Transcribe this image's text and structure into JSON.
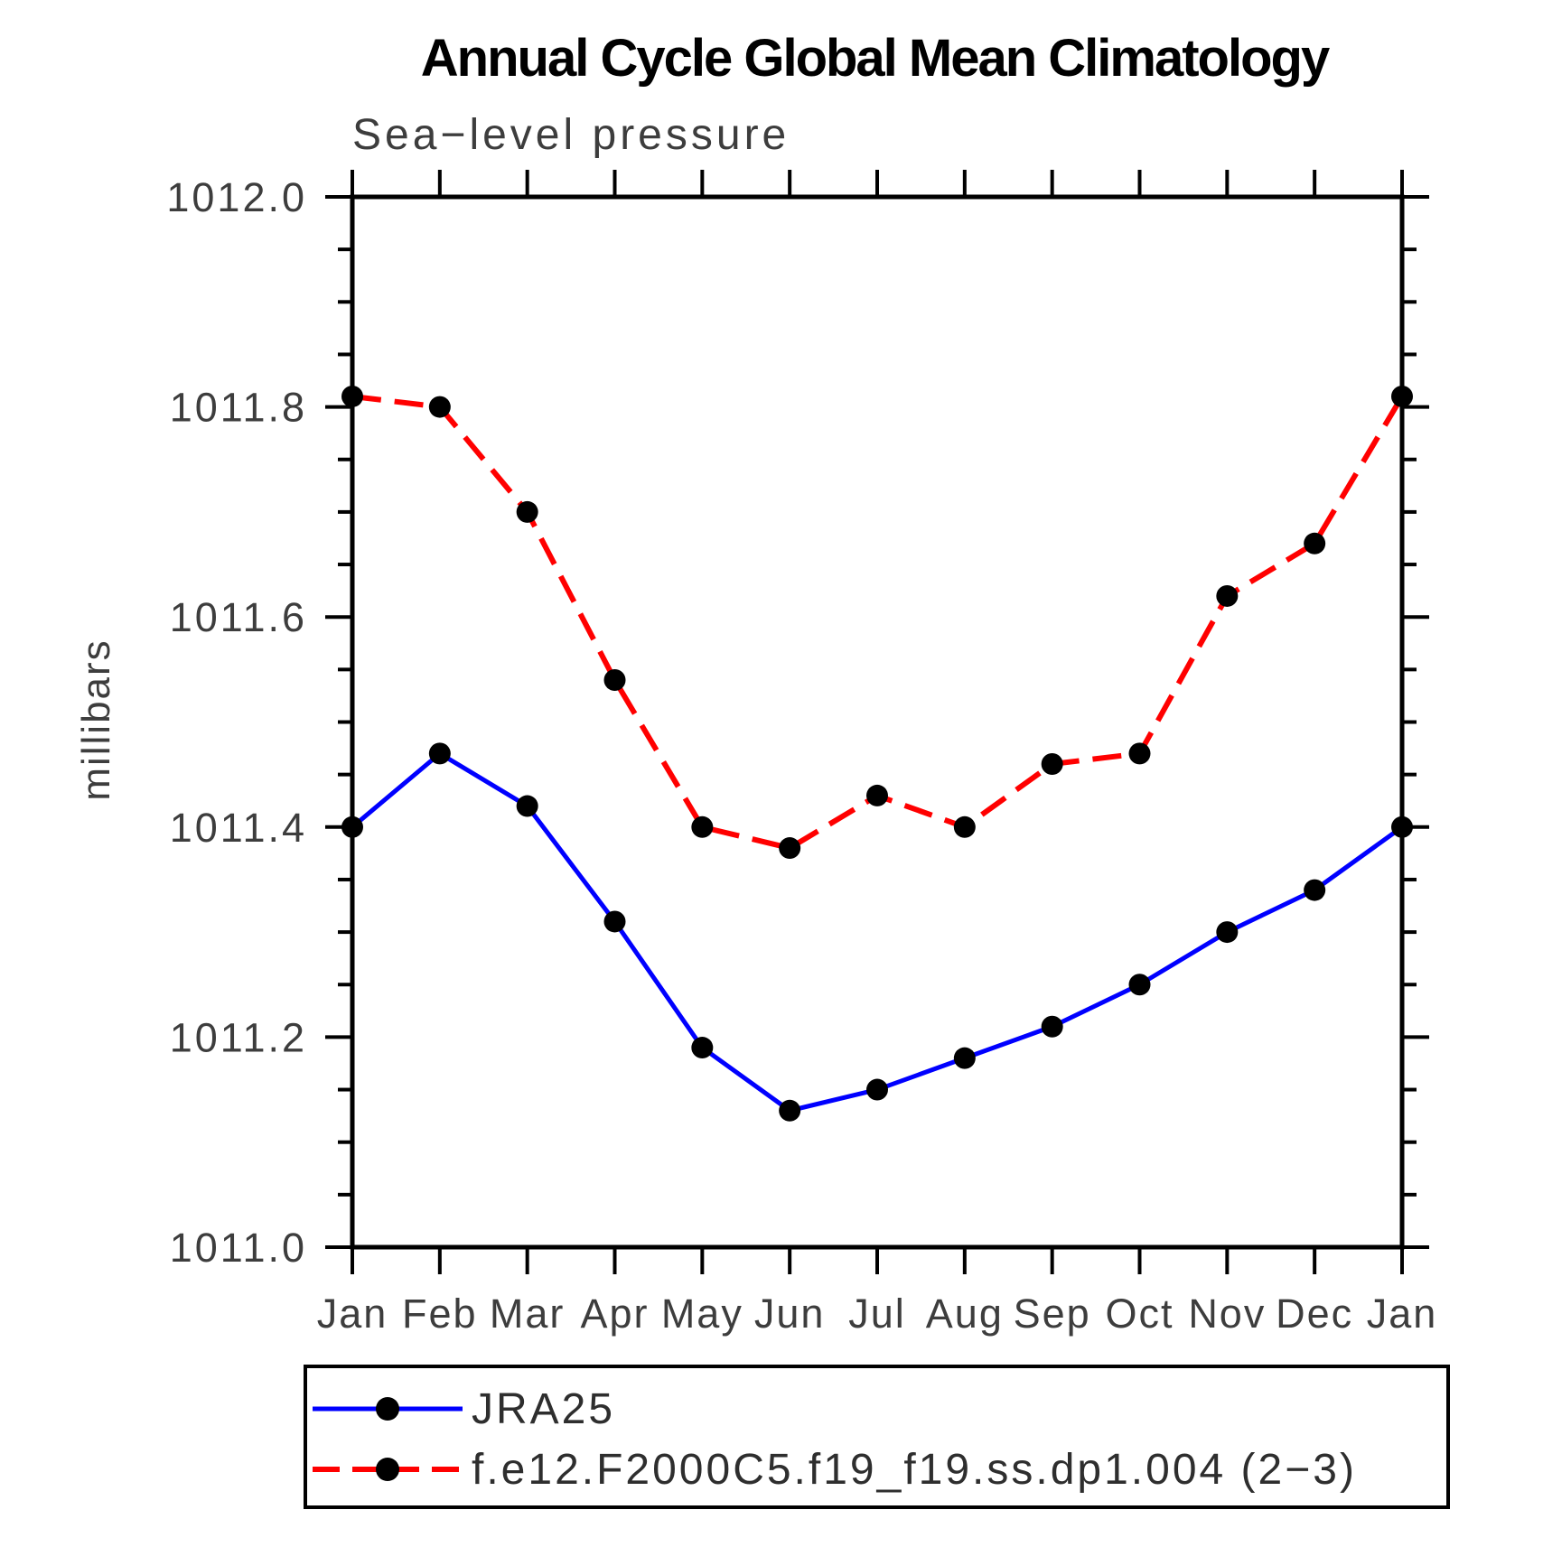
{
  "chart_data": {
    "type": "line",
    "title": "Annual Cycle Global Mean Climatology",
    "subtitle": "Sea−level pressure",
    "xlabel": "",
    "ylabel": "millibars",
    "categories": [
      "Jan",
      "Feb",
      "Mar",
      "Apr",
      "May",
      "Jun",
      "Jul",
      "Aug",
      "Sep",
      "Oct",
      "Nov",
      "Dec",
      "Jan"
    ],
    "ylim": [
      1011.0,
      1012.0
    ],
    "ytick_step": 0.2,
    "yminor_step": 0.05,
    "ytick_labels": [
      "1011.0",
      "1011.2",
      "1011.4",
      "1011.6",
      "1011.8",
      "1012.0"
    ],
    "grid": false,
    "legend_position": "bottom-left",
    "series": [
      {
        "name": "JRA25",
        "color": "#0000ff",
        "line_style": "solid",
        "marker": "filled-circle",
        "marker_color": "#000000",
        "values": [
          1011.4,
          1011.47,
          1011.42,
          1011.31,
          1011.19,
          1011.13,
          1011.15,
          1011.18,
          1011.21,
          1011.25,
          1011.3,
          1011.34,
          1011.4
        ]
      },
      {
        "name": "f.e12.F2000C5.f19_f19.ss.dp1.004 (2−3)",
        "color": "#ff0000",
        "line_style": "dashed",
        "marker": "filled-circle",
        "marker_color": "#000000",
        "values": [
          1011.81,
          1011.8,
          1011.7,
          1011.54,
          1011.4,
          1011.38,
          1011.43,
          1011.4,
          1011.46,
          1011.47,
          1011.62,
          1011.67,
          1011.81
        ]
      }
    ]
  }
}
